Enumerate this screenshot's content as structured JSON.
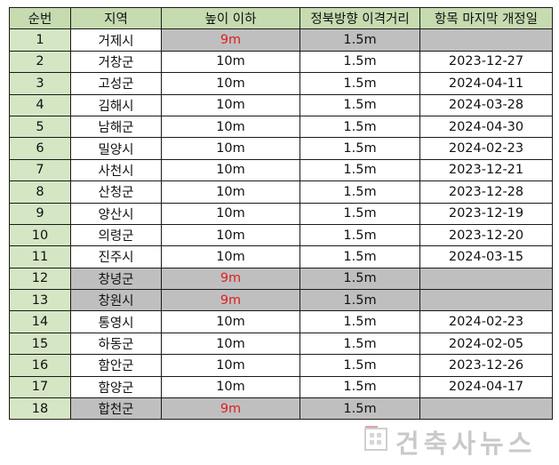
{
  "headers": [
    "순번",
    "지역",
    "높이 이하",
    "정북방향 이격거리",
    "항목 마지막 개정일"
  ],
  "rows": [
    {
      "no": "1",
      "region": "거제시",
      "height": "9m",
      "distance": "1.5m",
      "date": "",
      "gray": true,
      "region_white": true
    },
    {
      "no": "2",
      "region": "거창군",
      "height": "10m",
      "distance": "1.5m",
      "date": "2023-12-27"
    },
    {
      "no": "3",
      "region": "고성군",
      "height": "10m",
      "distance": "1.5m",
      "date": "2024-04-11"
    },
    {
      "no": "4",
      "region": "김해시",
      "height": "10m",
      "distance": "1.5m",
      "date": "2024-03-28"
    },
    {
      "no": "5",
      "region": "남해군",
      "height": "10m",
      "distance": "1.5m",
      "date": "2024-04-30"
    },
    {
      "no": "6",
      "region": "밀양시",
      "height": "10m",
      "distance": "1.5m",
      "date": "2024-02-23"
    },
    {
      "no": "7",
      "region": "사천시",
      "height": "10m",
      "distance": "1.5m",
      "date": "2023-12-21"
    },
    {
      "no": "8",
      "region": "산청군",
      "height": "10m",
      "distance": "1.5m",
      "date": "2023-12-28"
    },
    {
      "no": "9",
      "region": "양산시",
      "height": "10m",
      "distance": "1.5m",
      "date": "2023-12-19"
    },
    {
      "no": "10",
      "region": "의령군",
      "height": "10m",
      "distance": "1.5m",
      "date": "2023-12-20"
    },
    {
      "no": "11",
      "region": "진주시",
      "height": "10m",
      "distance": "1.5m",
      "date": "2024-03-15"
    },
    {
      "no": "12",
      "region": "창녕군",
      "height": "9m",
      "distance": "1.5m",
      "date": "",
      "gray": true
    },
    {
      "no": "13",
      "region": "창원시",
      "height": "9m",
      "distance": "1.5m",
      "date": "",
      "gray": true
    },
    {
      "no": "14",
      "region": "통영시",
      "height": "10m",
      "distance": "1.5m",
      "date": "2024-02-23"
    },
    {
      "no": "15",
      "region": "하동군",
      "height": "10m",
      "distance": "1.5m",
      "date": "2024-02-05"
    },
    {
      "no": "16",
      "region": "함안군",
      "height": "10m",
      "distance": "1.5m",
      "date": "2023-12-26"
    },
    {
      "no": "17",
      "region": "함양군",
      "height": "10m",
      "distance": "1.5m",
      "date": "2024-04-17"
    },
    {
      "no": "18",
      "region": "합천군",
      "height": "9m",
      "distance": "1.5m",
      "date": "",
      "gray": true
    }
  ],
  "colors": {
    "header_bg": "#c6dbb0",
    "number_bg": "#d5e6c4",
    "gray_row_bg": "#bfbfbf",
    "highlight_text": "#e02020",
    "watermark": "#c9c9c9"
  },
  "watermark": {
    "text": "건축사뉴스",
    "icon": "building-logo-icon"
  }
}
